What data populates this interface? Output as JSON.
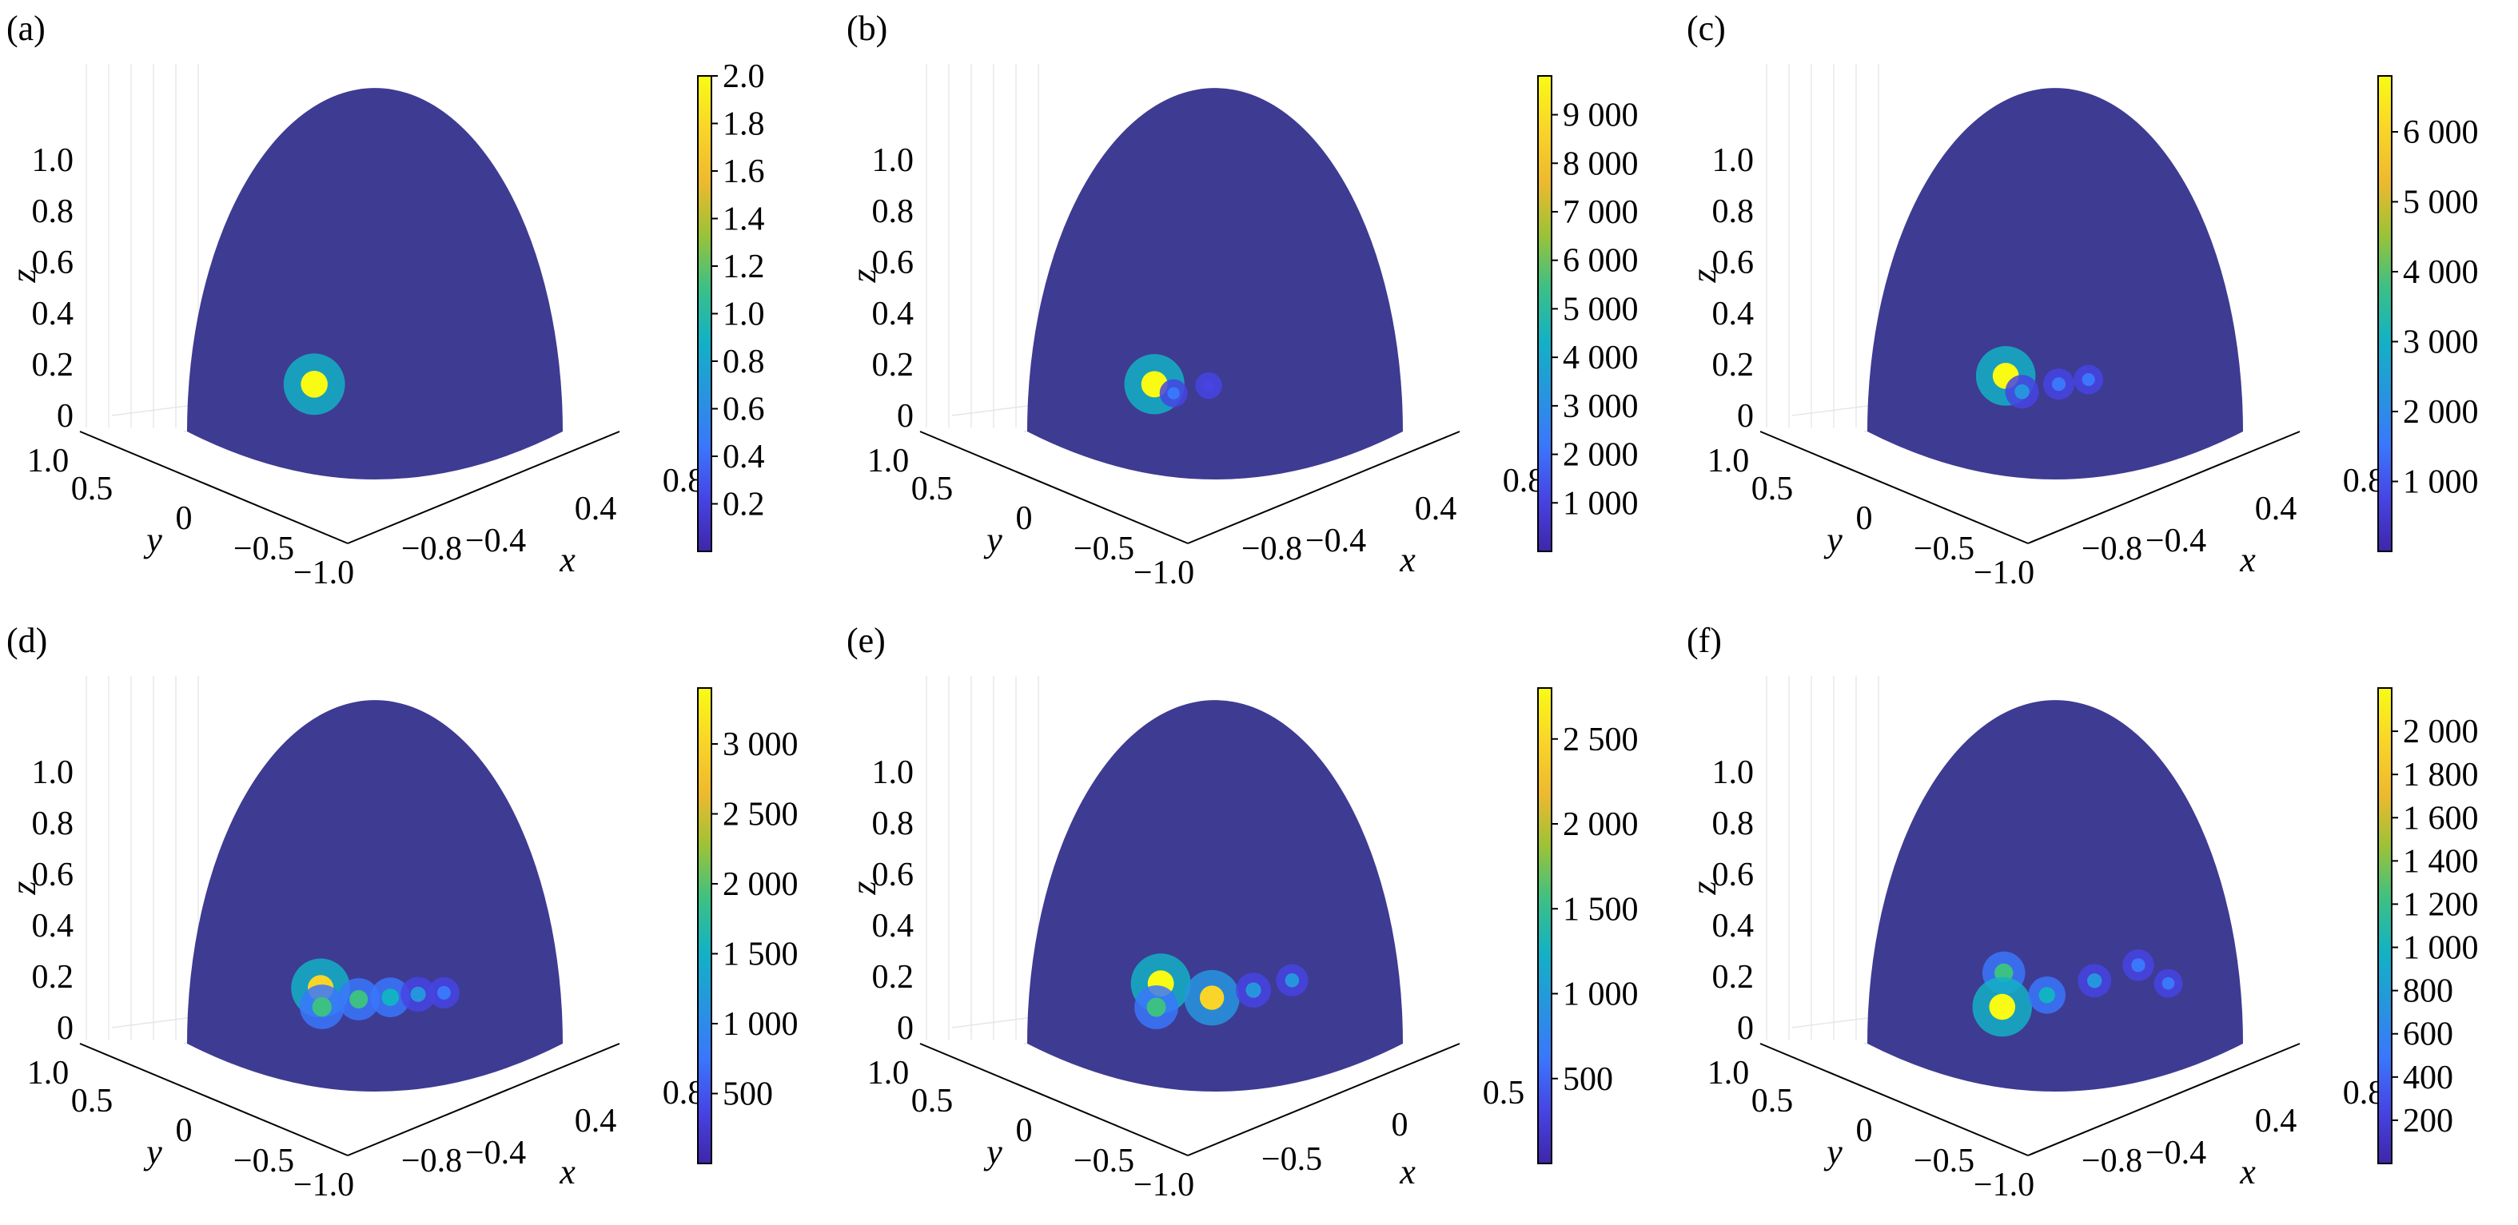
{
  "colors": {
    "sphere_base": "#3e3b92",
    "colormap": [
      "#3e26a8",
      "#4744e3",
      "#3a77fb",
      "#2795de",
      "#13b1c4",
      "#3dc084",
      "#9cc237",
      "#eeb92f",
      "#f9d529",
      "#f9fb15"
    ]
  },
  "chart_data": [
    {
      "label": "(a)",
      "type": "heatmap",
      "surface": "hemisphere",
      "xlabel": "x",
      "ylabel": "y",
      "zlabel": "z",
      "x_ticks": [
        "−0.8",
        "−0.4",
        "0.4",
        "0.8"
      ],
      "y_ticks": [
        "−1.0",
        "−0.5",
        "0",
        "0.5",
        "1.0"
      ],
      "z_ticks": [
        "0",
        "0.2",
        "0.4",
        "0.6",
        "0.8",
        "1.0"
      ],
      "colorbar": {
        "min": 0,
        "max": 2.0,
        "ticks": [
          "0.2",
          "0.4",
          "0.6",
          "0.8",
          "1.0",
          "1.2",
          "1.4",
          "1.6",
          "1.8",
          "2.0"
        ]
      },
      "hotspots": [
        {
          "x": -0.62,
          "y": -0.4,
          "z": 0.06,
          "value": 2.0
        }
      ]
    },
    {
      "label": "(b)",
      "type": "heatmap",
      "surface": "hemisphere",
      "xlabel": "x",
      "ylabel": "y",
      "zlabel": "z",
      "x_ticks": [
        "−0.8",
        "−0.4",
        "0.4",
        "0.8"
      ],
      "y_ticks": [
        "−1.0",
        "−0.5",
        "0",
        "0.5",
        "1.0"
      ],
      "z_ticks": [
        "0",
        "0.2",
        "0.4",
        "0.6",
        "0.8",
        "1.0"
      ],
      "colorbar": {
        "min": 0,
        "max": 9800,
        "ticks": [
          "1 000",
          "2 000",
          "3 000",
          "4 000",
          "5 000",
          "6 000",
          "7 000",
          "8 000",
          "9 000"
        ]
      },
      "hotspots": [
        {
          "x": -0.62,
          "y": -0.4,
          "z": 0.06,
          "value": 9500
        },
        {
          "x": -0.56,
          "y": -0.5,
          "z": 0.02,
          "value": 1800
        },
        {
          "x": -0.4,
          "y": -0.6,
          "z": 0.02,
          "value": 1500
        }
      ]
    },
    {
      "label": "(c)",
      "type": "heatmap",
      "surface": "hemisphere",
      "xlabel": "x",
      "ylabel": "y",
      "zlabel": "z",
      "x_ticks": [
        "−0.8",
        "−0.4",
        "0.4",
        "0.8"
      ],
      "y_ticks": [
        "−1.0",
        "−0.5",
        "0",
        "0.5",
        "1.0"
      ],
      "z_ticks": [
        "0",
        "0.2",
        "0.4",
        "0.6",
        "0.8",
        "1.0"
      ],
      "colorbar": {
        "min": 0,
        "max": 6800,
        "ticks": [
          "1 000",
          "2 000",
          "3 000",
          "4 000",
          "5 000",
          "6 000"
        ]
      },
      "hotspots": [
        {
          "x": -0.55,
          "y": -0.4,
          "z": 0.08,
          "value": 6500
        },
        {
          "x": -0.52,
          "y": -0.52,
          "z": 0.02,
          "value": 2200
        },
        {
          "x": -0.35,
          "y": -0.62,
          "z": 0.02,
          "value": 1800
        },
        {
          "x": -0.2,
          "y": -0.68,
          "z": 0.02,
          "value": 1500
        }
      ]
    },
    {
      "label": "(d)",
      "type": "heatmap",
      "surface": "hemisphere",
      "xlabel": "x",
      "ylabel": "y",
      "zlabel": "z",
      "x_ticks": [
        "−0.8",
        "−0.4",
        "0.4",
        "0.8"
      ],
      "y_ticks": [
        "−1.0",
        "−0.5",
        "0",
        "0.5",
        "1.0"
      ],
      "z_ticks": [
        "0",
        "0.2",
        "0.4",
        "0.6",
        "0.8",
        "1.0"
      ],
      "colorbar": {
        "min": 0,
        "max": 3400,
        "ticks": [
          "500",
          "1 000",
          "1 500",
          "2 000",
          "2 500",
          "3 000"
        ]
      },
      "hotspots": [
        {
          "x": -0.58,
          "y": -0.4,
          "z": 0.08,
          "value": 3200
        },
        {
          "x": -0.62,
          "y": -0.48,
          "z": 0.02,
          "value": 2000
        },
        {
          "x": -0.45,
          "y": -0.58,
          "z": 0.02,
          "value": 1800
        },
        {
          "x": -0.3,
          "y": -0.66,
          "z": 0.01,
          "value": 1600
        },
        {
          "x": -0.15,
          "y": -0.7,
          "z": 0.01,
          "value": 1200
        },
        {
          "x": 0.0,
          "y": -0.72,
          "z": 0.01,
          "value": 900
        }
      ]
    },
    {
      "label": "(e)",
      "type": "heatmap",
      "surface": "hemisphere",
      "xlabel": "x",
      "ylabel": "y",
      "zlabel": "z",
      "x_ticks": [
        "−0.5",
        "0",
        "0.5"
      ],
      "y_ticks": [
        "−1.0",
        "−0.5",
        "0",
        "0.5",
        "1.0"
      ],
      "z_ticks": [
        "0",
        "0.2",
        "0.4",
        "0.6",
        "0.8",
        "1.0"
      ],
      "colorbar": {
        "min": 0,
        "max": 2800,
        "ticks": [
          "500",
          "1 000",
          "1 500",
          "2 000",
          "2 500"
        ]
      },
      "hotspots": [
        {
          "x": -0.55,
          "y": -0.35,
          "z": 0.1,
          "value": 2700
        },
        {
          "x": -0.62,
          "y": -0.42,
          "z": 0.03,
          "value": 1600
        },
        {
          "x": -0.38,
          "y": -0.6,
          "z": 0.02,
          "value": 2400
        },
        {
          "x": -0.18,
          "y": -0.7,
          "z": 0.02,
          "value": 1000
        },
        {
          "x": 0.05,
          "y": -0.72,
          "z": 0.04,
          "value": 800
        }
      ]
    },
    {
      "label": "(f)",
      "type": "heatmap",
      "surface": "hemisphere",
      "xlabel": "x",
      "ylabel": "y",
      "zlabel": "z",
      "x_ticks": [
        "−0.8",
        "−0.4",
        "0.4",
        "0.8"
      ],
      "y_ticks": [
        "−1.0",
        "−0.5",
        "0",
        "0.5",
        "1.0"
      ],
      "z_ticks": [
        "0",
        "0.2",
        "0.4",
        "0.6",
        "0.8",
        "1.0"
      ],
      "colorbar": {
        "min": 0,
        "max": 2200,
        "ticks": [
          "200",
          "400",
          "600",
          "800",
          "1 000",
          "1 200",
          "1 400",
          "1 600",
          "1 800",
          "2 000"
        ]
      },
      "hotspots": [
        {
          "x": -0.55,
          "y": -0.38,
          "z": 0.12,
          "value": 1200
        },
        {
          "x": -0.62,
          "y": -0.48,
          "z": 0.02,
          "value": 2100
        },
        {
          "x": -0.4,
          "y": -0.58,
          "z": 0.03,
          "value": 900
        },
        {
          "x": -0.15,
          "y": -0.66,
          "z": 0.05,
          "value": 700
        },
        {
          "x": 0.1,
          "y": -0.7,
          "z": 0.08,
          "value": 600
        },
        {
          "x": 0.3,
          "y": -0.68,
          "z": 0.04,
          "value": 450
        }
      ]
    }
  ]
}
